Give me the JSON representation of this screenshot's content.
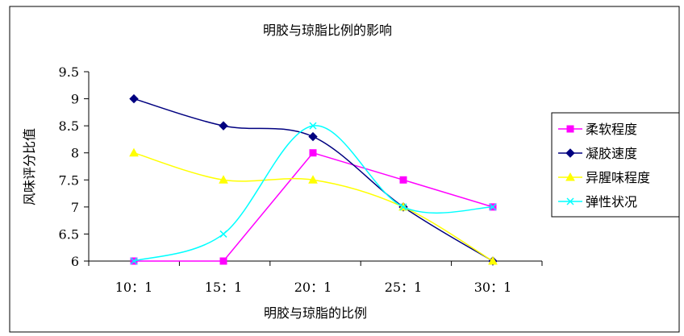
{
  "chart_data": {
    "type": "line",
    "title": "明胶与琼脂比例的影响",
    "xlabel": "明胶与琼脂的比例",
    "ylabel": "风味评分比值",
    "categories": [
      "10：1",
      "15：1",
      "20：1",
      "25：1",
      "30：1"
    ],
    "ylim": [
      6,
      9.5
    ],
    "yticks": [
      "6",
      "6.5",
      "7",
      "7.5",
      "8",
      "8.5",
      "9",
      "9.5"
    ],
    "grid": false,
    "legend_position": "right",
    "series": [
      {
        "name": "柔软程度",
        "color": "#ff00ff",
        "marker": "square",
        "values": [
          6,
          6,
          8,
          7.5,
          7
        ]
      },
      {
        "name": "凝胶速度",
        "color": "#000080",
        "marker": "diamond",
        "values": [
          9,
          8.5,
          8.3,
          7,
          6
        ]
      },
      {
        "name": "异腥味程度",
        "color": "#ffff00",
        "marker": "triangle",
        "values": [
          8,
          7.5,
          7.5,
          7,
          6
        ]
      },
      {
        "name": "弹性状况",
        "color": "#00ffff",
        "marker": "x",
        "values": [
          6,
          6.5,
          8.5,
          7,
          7
        ]
      }
    ]
  }
}
